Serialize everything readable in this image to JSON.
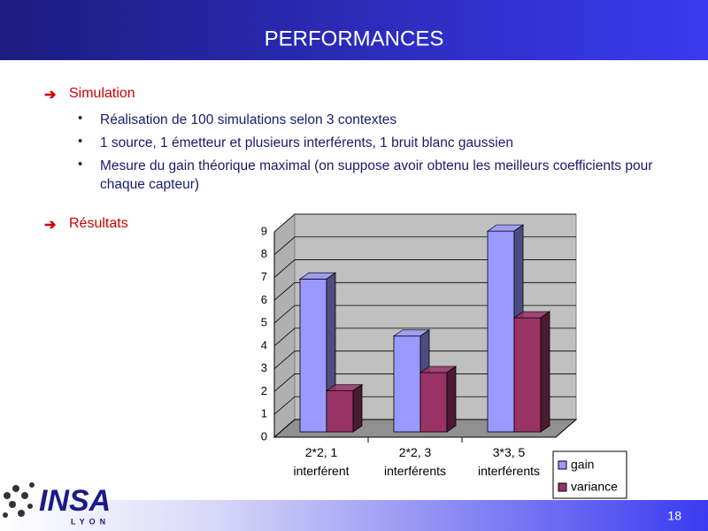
{
  "header": {
    "title": "PERFORMANCES"
  },
  "bullets": [
    {
      "text": "Simulation",
      "items": [
        "Réalisation de 100 simulations selon 3 contextes",
        "1 source, 1 émetteur et plusieurs interférents, 1 bruit blanc gaussien",
        "Mesure du gain théorique maximal (on suppose avoir obtenu les meilleurs coefficients pour chaque capteur)"
      ]
    },
    {
      "text": "Résultats",
      "items": []
    }
  ],
  "chart_data": {
    "type": "bar3d",
    "categories": [
      "2*2, 1 interférent",
      "2*2, 3 interférents",
      "3*3, 5 interférents"
    ],
    "series": [
      {
        "name": "gain",
        "color": "#9999ff",
        "values": [
          6.7,
          4.2,
          8.8
        ]
      },
      {
        "name": "variance",
        "color": "#993366",
        "values": [
          1.8,
          2.6,
          5.0
        ]
      }
    ],
    "ylim": [
      0,
      9
    ],
    "yticks": [
      0,
      1,
      2,
      3,
      4,
      5,
      6,
      7,
      8,
      9
    ],
    "grid": true,
    "legend": "bottom-right"
  },
  "logo": {
    "name": "INSA",
    "city": "LYON"
  },
  "footer": {
    "page": "18"
  }
}
